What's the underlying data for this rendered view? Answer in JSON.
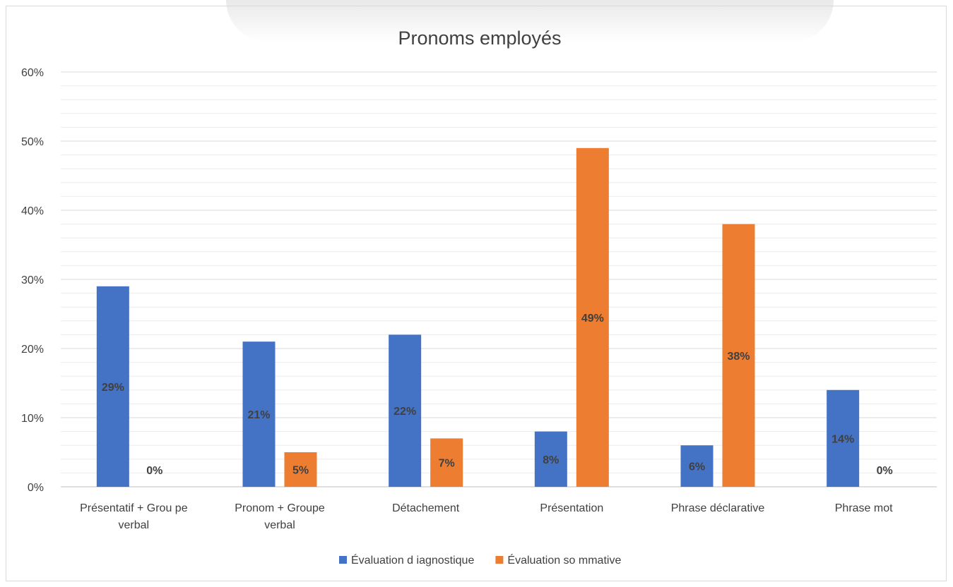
{
  "chart_data": {
    "type": "bar",
    "title": "Pronoms employés",
    "xlabel": "",
    "ylabel": "",
    "ylim": [
      0,
      60
    ],
    "yticks": [
      "0%",
      "10%",
      "20%",
      "30%",
      "40%",
      "50%",
      "60%"
    ],
    "y_major_step": 10,
    "y_minor_step": 2,
    "grid": true,
    "legend_position": "bottom",
    "categories": [
      [
        "Présentatif + Grou pe",
        "verbal"
      ],
      [
        "Pronom + Groupe",
        "verbal"
      ],
      [
        "Détachement"
      ],
      [
        "Présentation"
      ],
      [
        "Phrase déclarative"
      ],
      [
        "Phrase mot"
      ]
    ],
    "series": [
      {
        "name": "Évaluation d iagnostique",
        "color": "#4472c4",
        "values": [
          29,
          21,
          22,
          8,
          6,
          14
        ],
        "labels": [
          "29%",
          "21%",
          "22%",
          "8%",
          "6%",
          "14%"
        ]
      },
      {
        "name": "Évaluation so mmative",
        "color": "#ed7d31",
        "values": [
          0,
          5,
          7,
          49,
          38,
          0
        ],
        "labels": [
          "0%",
          "5%",
          "7%",
          "49%",
          "38%",
          "0%"
        ]
      }
    ]
  }
}
